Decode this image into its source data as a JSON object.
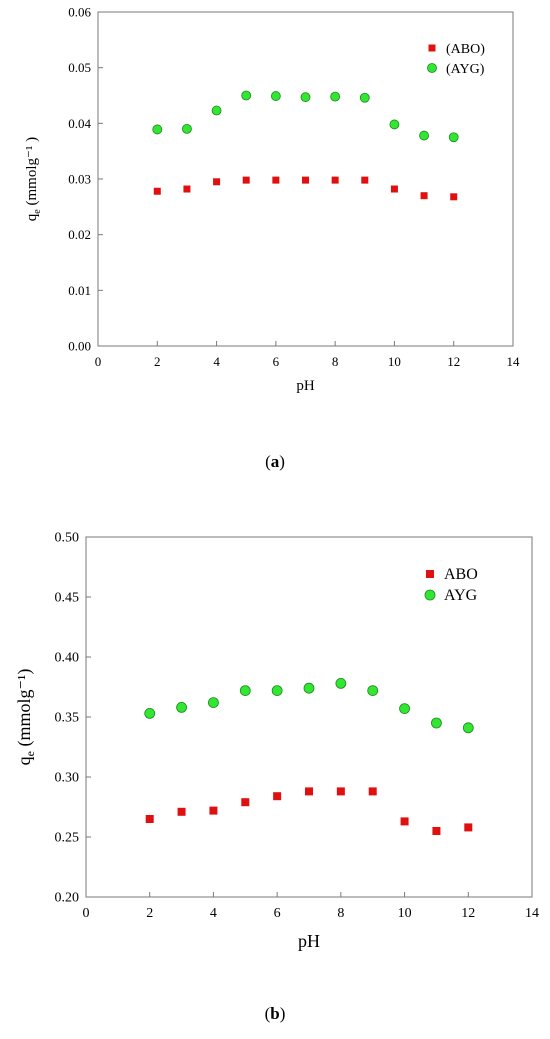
{
  "chart_data": [
    {
      "type": "scatter",
      "panel": "a",
      "caption": {
        "open": "(",
        "letter": "a",
        "close": ")"
      },
      "xlabel": "pH",
      "ylabel": {
        "main": "q",
        "sub": "e",
        "unit": " (mmolg⁻¹ )"
      },
      "xlim": [
        0,
        14
      ],
      "ylim": [
        0,
        0.06
      ],
      "xticks": [
        "0",
        "2",
        "4",
        "6",
        "8",
        "10",
        "12",
        "14"
      ],
      "yticks": [
        "0.00",
        "0.01",
        "0.02",
        "0.03",
        "0.04",
        "0.05",
        "0.06"
      ],
      "grid": false,
      "legend_position": "top-right",
      "x": [
        2,
        3,
        4,
        5,
        6,
        7,
        8,
        9,
        10,
        11,
        12
      ],
      "series": [
        {
          "name": "(ABO)",
          "marker": "square",
          "color": "#e01010",
          "values": [
            0.0278,
            0.0282,
            0.0295,
            0.0298,
            0.0298,
            0.0298,
            0.0298,
            0.0298,
            0.0282,
            0.027,
            0.0268
          ]
        },
        {
          "name": "(AYG)",
          "marker": "circle",
          "color": "#33e633",
          "values": [
            0.0389,
            0.039,
            0.0423,
            0.045,
            0.0449,
            0.0447,
            0.0448,
            0.0446,
            0.0398,
            0.0378,
            0.0375
          ]
        }
      ]
    },
    {
      "type": "scatter",
      "panel": "b",
      "caption": {
        "open": "(",
        "letter": "b",
        "close": ")"
      },
      "xlabel": "pH",
      "ylabel": {
        "main": "q",
        "sub": "e",
        "unit": " (mmolg⁻¹)"
      },
      "xlim": [
        0,
        14
      ],
      "ylim": [
        0.2,
        0.5
      ],
      "xticks": [
        "0",
        "2",
        "4",
        "6",
        "8",
        "10",
        "12",
        "14"
      ],
      "yticks": [
        "0.20",
        "0.25",
        "0.30",
        "0.35",
        "0.40",
        "0.45",
        "0.50"
      ],
      "grid": false,
      "legend_position": "top-right",
      "x": [
        2,
        3,
        4,
        5,
        6,
        7,
        8,
        9,
        10,
        11,
        12
      ],
      "series": [
        {
          "name": "ABO",
          "marker": "square",
          "color": "#e01010",
          "values": [
            0.265,
            0.271,
            0.272,
            0.279,
            0.284,
            0.288,
            0.288,
            0.288,
            0.263,
            0.255,
            0.258
          ]
        },
        {
          "name": "AYG",
          "marker": "circle",
          "color": "#33e633",
          "values": [
            0.353,
            0.358,
            0.362,
            0.372,
            0.372,
            0.374,
            0.378,
            0.372,
            0.357,
            0.345,
            0.341
          ]
        }
      ]
    }
  ]
}
